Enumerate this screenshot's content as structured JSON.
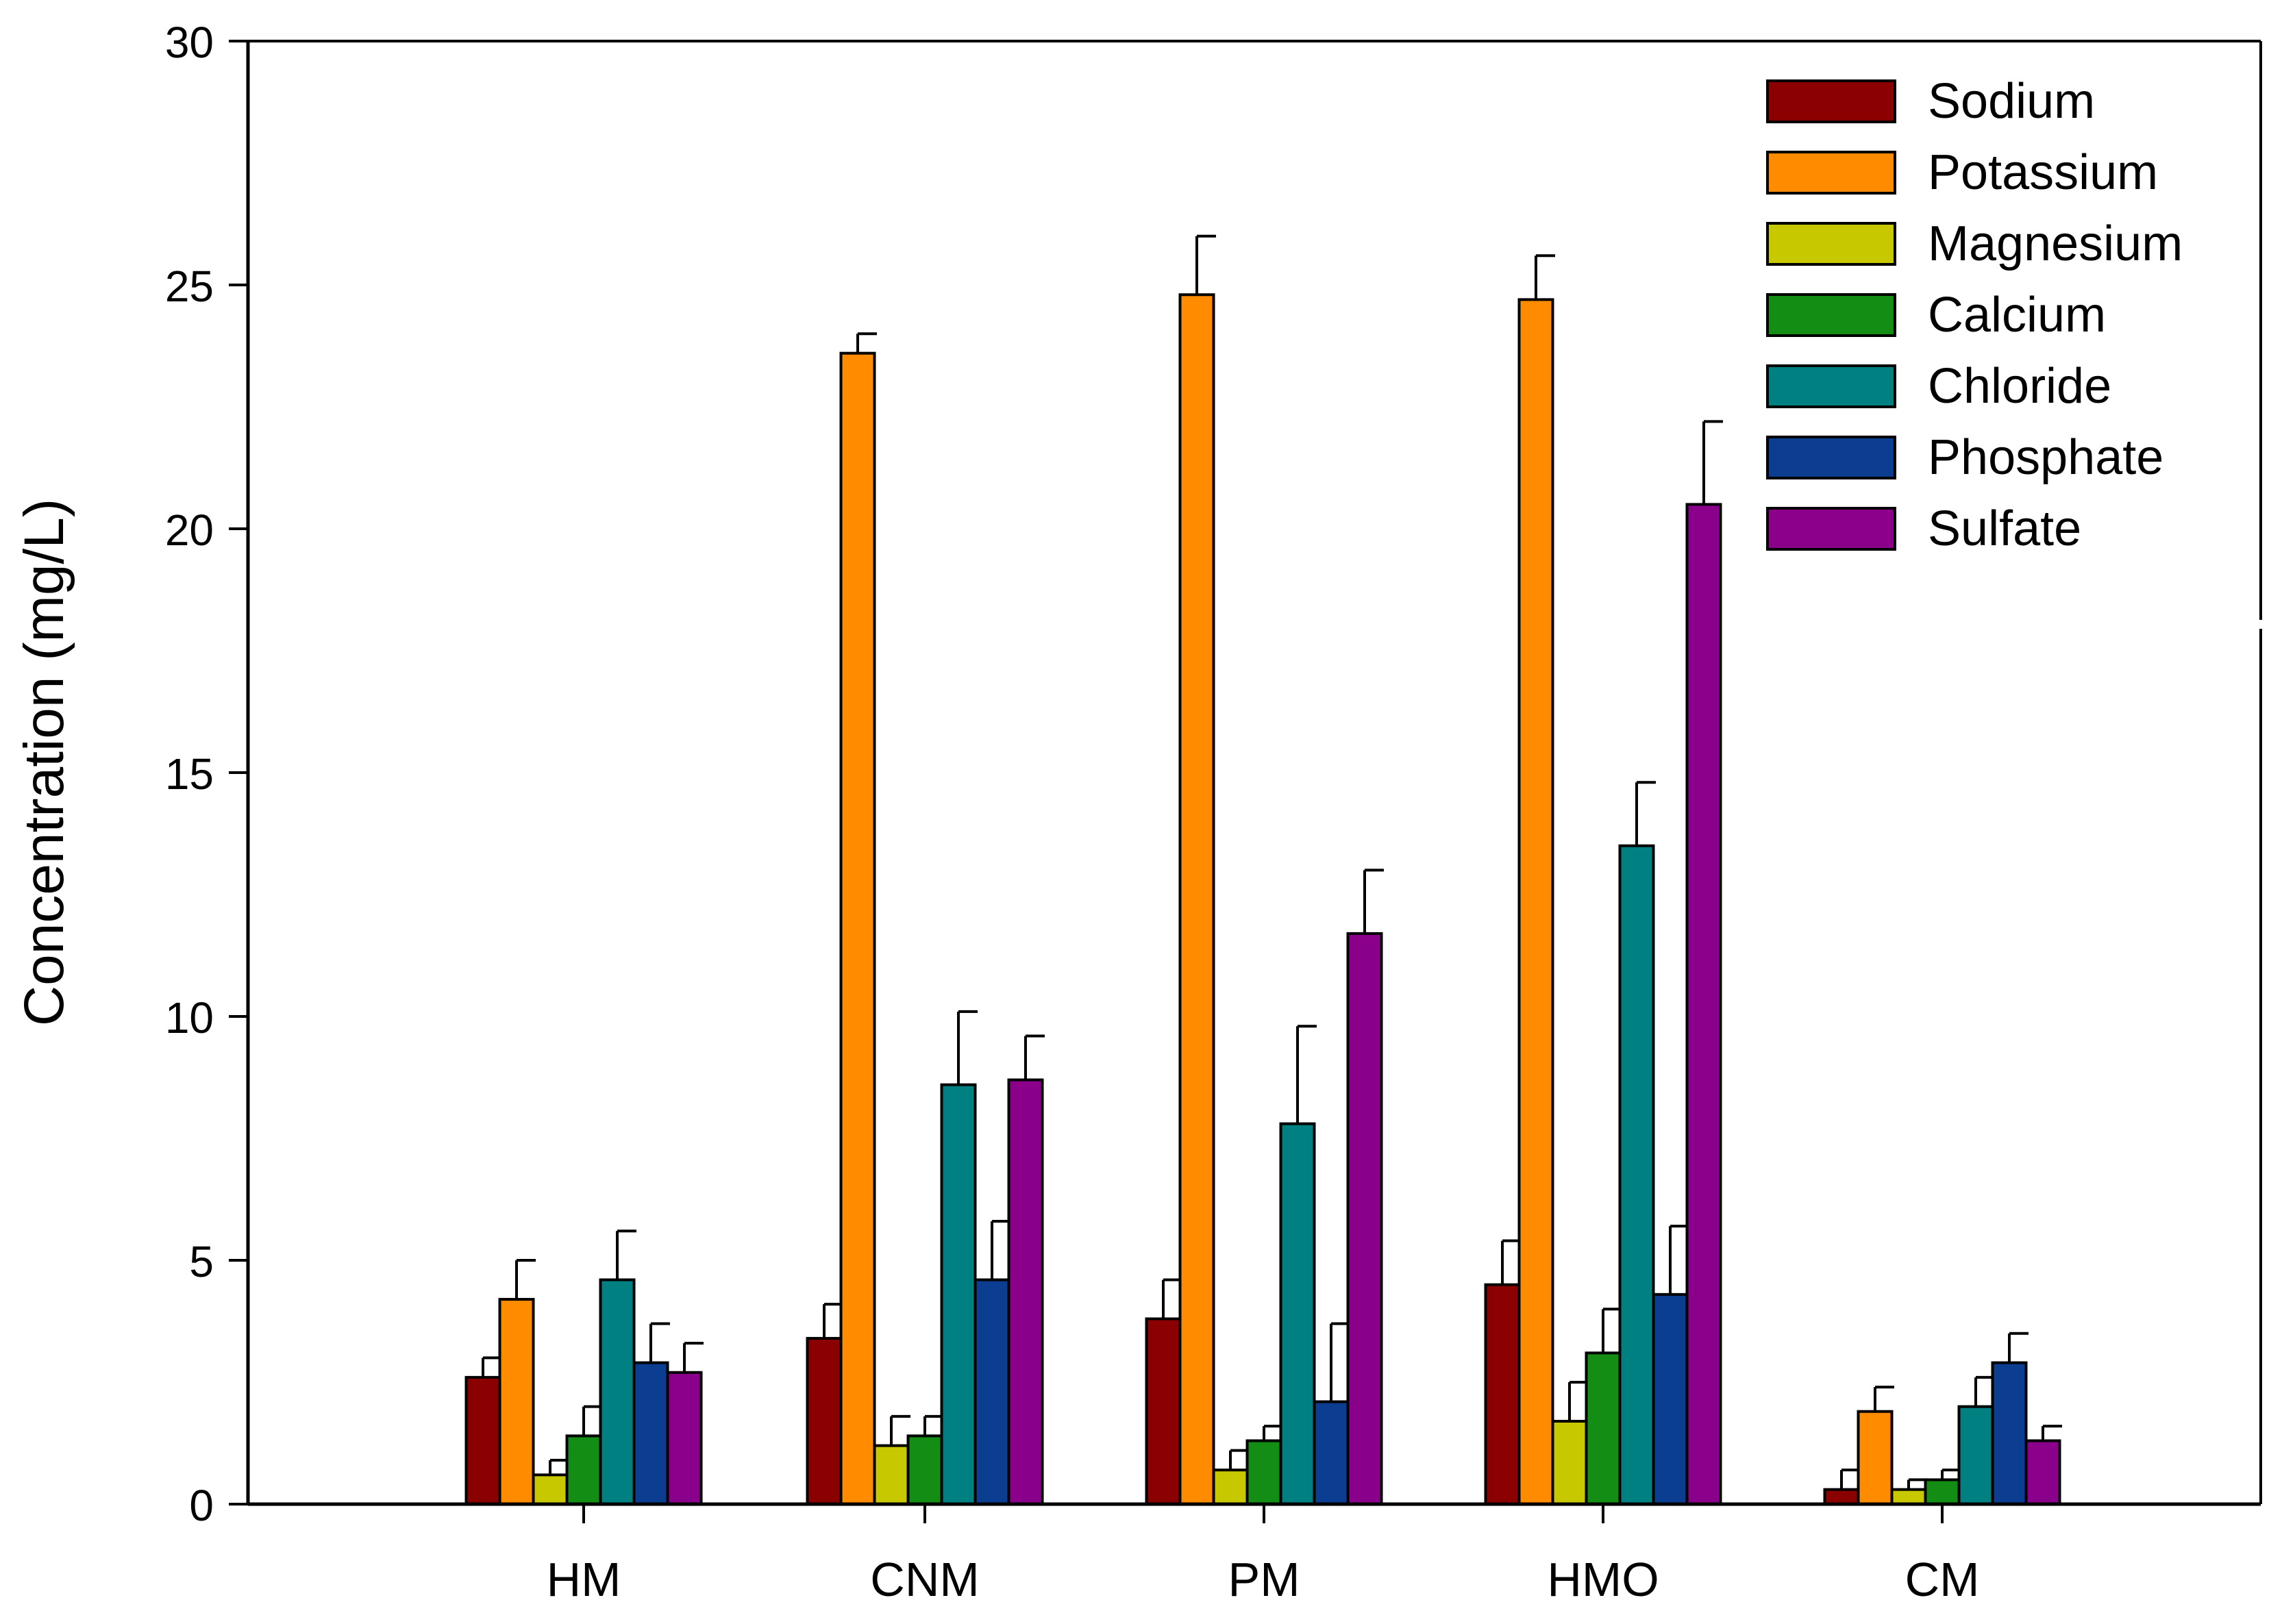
{
  "chart_data": {
    "type": "bar",
    "title": "",
    "xlabel": "",
    "ylabel": "Concentration (mg/L)",
    "ylim": [
      0,
      30
    ],
    "yticks": [
      "0",
      "5",
      "10",
      "15",
      "20",
      "25",
      "30"
    ],
    "grid": false,
    "legend_position": "top-right",
    "categories": [
      "HM",
      "CNM",
      "PM",
      "HMO",
      "CM"
    ],
    "series": [
      {
        "name": "Sodium",
        "color": "#8b0000",
        "values": [
          2.6,
          3.4,
          3.8,
          4.5,
          0.3
        ],
        "errors": [
          0.4,
          0.7,
          0.8,
          0.9,
          0.4
        ]
      },
      {
        "name": "Potassium",
        "color": "#ff8c00",
        "values": [
          4.2,
          23.6,
          24.8,
          24.7,
          1.9
        ],
        "errors": [
          0.8,
          0.4,
          1.2,
          0.9,
          0.5
        ]
      },
      {
        "name": "Magnesium",
        "color": "#c8c800",
        "values": [
          0.6,
          1.2,
          0.7,
          1.7,
          0.3
        ],
        "errors": [
          0.3,
          0.6,
          0.4,
          0.8,
          0.2
        ]
      },
      {
        "name": "Calcium",
        "color": "#138d13",
        "values": [
          1.4,
          1.4,
          1.3,
          3.1,
          0.5
        ],
        "errors": [
          0.6,
          0.4,
          0.3,
          0.9,
          0.2
        ]
      },
      {
        "name": "Chloride",
        "color": "#008080",
        "values": [
          4.6,
          8.6,
          7.8,
          13.5,
          2.0
        ],
        "errors": [
          1.0,
          1.5,
          2.0,
          1.3,
          0.6
        ]
      },
      {
        "name": "Phosphate",
        "color": "#0b3d91",
        "values": [
          2.9,
          4.6,
          2.1,
          4.3,
          2.9
        ],
        "errors": [
          0.8,
          1.2,
          1.6,
          1.4,
          0.6
        ]
      },
      {
        "name": "Sulfate",
        "color": "#8b008b",
        "values": [
          2.7,
          8.7,
          11.7,
          20.5,
          1.3
        ],
        "errors": [
          0.6,
          0.9,
          1.3,
          1.7,
          0.3
        ]
      }
    ]
  }
}
